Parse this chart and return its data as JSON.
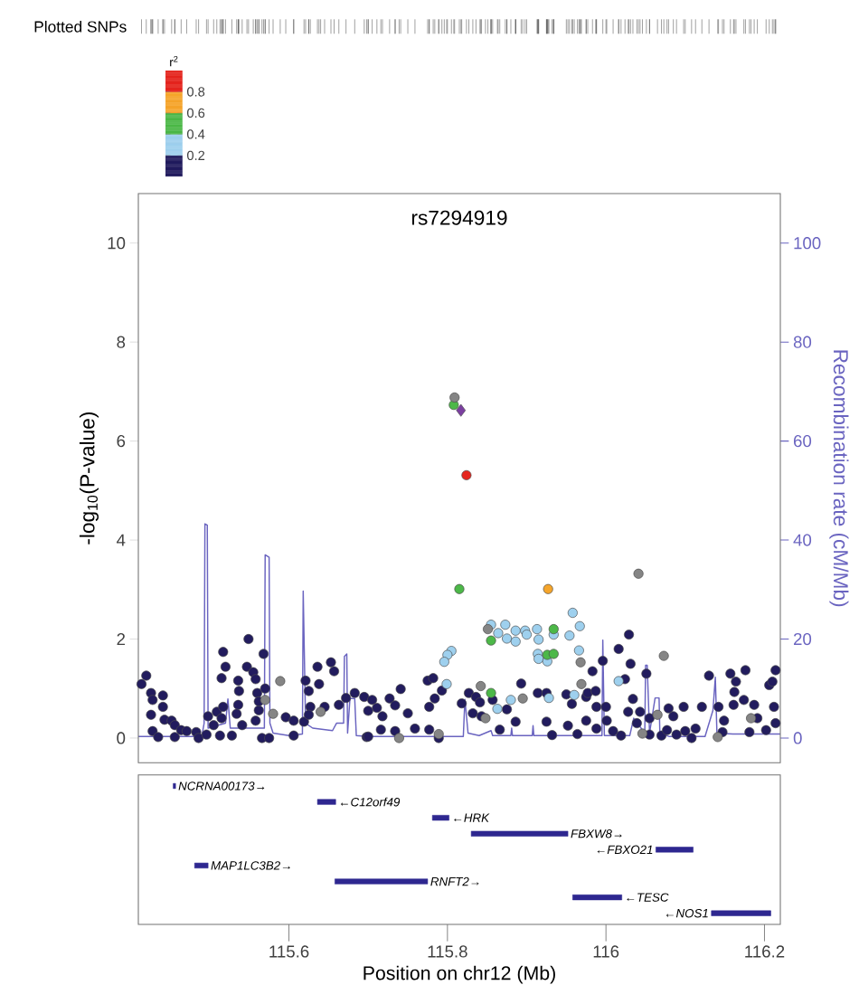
{
  "chart_data": [
    {
      "type": "scatter",
      "title": "rs7294919",
      "ylabel": "-log$_{10}$(P-value)",
      "y2label": "Recombination rate (cM/Mb)",
      "clabel": "r$^{2}$",
      "clim": [
        0,
        1
      ],
      "cticks": [
        0.2,
        0.4,
        0.6,
        0.8
      ],
      "annotations": [
        "Plotted SNPs"
      ],
      "xlim": [
        115.41,
        116.22
      ],
      "ylim": [
        -0.5,
        11
      ],
      "yticks": [
        0,
        2,
        4,
        6,
        8,
        10
      ],
      "y2lim": [
        -5,
        110
      ],
      "y2ticks": [
        0,
        20,
        40,
        60,
        80,
        100
      ],
      "tick_labels": "y",
      "marker": "circle",
      "series": [
        {
          "color": "#221c5e",
          "x": [
            115.42,
            115.414,
            115.426,
            115.428,
            115.441,
            115.426,
            115.441,
            115.443,
            115.452,
            115.428,
            115.435,
            115.456,
            115.464,
            115.471,
            115.456,
            115.483,
            115.486,
            115.498,
            115.496,
            115.505,
            115.509,
            115.515,
            115.517,
            115.513,
            115.517,
            115.52,
            115.515,
            115.536,
            115.537,
            115.536,
            115.534,
            115.541,
            115.528,
            115.549,
            115.547,
            115.555,
            115.558,
            115.56,
            115.562,
            115.558,
            115.566,
            115.575,
            115.568,
            115.57,
            115.562,
            115.596,
            115.606,
            115.606,
            115.619,
            115.621,
            115.625,
            115.636,
            115.638,
            115.653,
            115.657,
            115.627,
            115.645,
            115.625,
            115.663,
            115.672,
            115.683,
            115.698,
            115.695,
            115.705,
            115.7,
            115.711,
            115.727,
            115.741,
            115.734,
            115.75,
            115.718,
            115.7,
            115.716,
            115.734,
            115.759,
            115.775,
            115.782,
            115.777,
            115.784,
            115.793,
            115.777,
            115.789,
            115.818,
            115.827,
            115.836,
            115.841,
            115.832,
            115.843,
            115.857,
            115.875,
            115.886,
            115.893,
            115.866,
            115.914,
            115.925,
            115.925,
            115.932,
            115.95,
            115.957,
            115.952,
            115.964,
            115.975,
            116.029,
            116.016,
            116.031,
            115.996,
            116.051,
            116.024,
            115.983,
            115.977,
            115.987,
            115.988,
            116.0,
            116.034,
            116.028,
            116.043,
            115.975,
            115.988,
            116.001,
            116.009,
            116.019,
            116.039,
            116.055,
            116.055,
            116.07,
            116.079,
            116.085,
            116.098,
            116.077,
            116.089,
            116.1,
            116.108,
            116.113,
            116.121,
            116.13,
            116.142,
            116.149,
            116.147,
            116.157,
            116.164,
            116.176,
            116.162,
            116.161,
            116.174,
            116.187,
            116.191,
            116.181,
            116.202,
            116.206,
            116.21,
            116.214,
            116.212,
            116.214
          ],
          "values": [
            1.26,
            1.09,
            0.91,
            0.77,
            0.86,
            0.47,
            0.63,
            0.37,
            0.35,
            0.14,
            0.02,
            0.26,
            0.16,
            0.14,
            0.02,
            0.12,
            0.0,
            0.44,
            0.07,
            0.26,
            0.53,
            0.4,
            0.63,
            0.05,
            1.74,
            1.44,
            1.21,
            1.16,
            0.95,
            0.67,
            0.49,
            0.26,
            0.05,
            2.0,
            1.44,
            1.33,
            1.19,
            0.91,
            0.56,
            0.35,
            0.0,
            0.0,
            1.7,
            1.0,
            0.74,
            0.42,
            0.35,
            0.05,
            0.33,
            1.16,
            0.95,
            1.44,
            1.09,
            1.53,
            1.35,
            0.63,
            0.63,
            0.47,
            0.67,
            0.81,
            0.91,
            0.02,
            0.83,
            0.77,
            0.55,
            0.61,
            0.8,
            0.99,
            0.66,
            0.5,
            0.44,
            0.03,
            0.17,
            0.14,
            0.19,
            1.16,
            1.21,
            0.63,
            0.8,
            0.96,
            0.17,
            0.0,
            0.7,
            0.91,
            0.83,
            0.72,
            0.5,
            0.44,
            0.77,
            0.58,
            0.33,
            1.1,
            0.17,
            0.91,
            0.91,
            0.33,
            0.06,
            0.88,
            0.69,
            0.25,
            0.08,
            0.83,
            2.09,
            1.8,
            1.5,
            1.56,
            1.3,
            1.19,
            1.35,
            0.91,
            0.95,
            0.63,
            0.63,
            0.79,
            0.53,
            0.53,
            0.35,
            0.19,
            0.35,
            0.14,
            0.05,
            0.3,
            0.4,
            0.07,
            0.05,
            0.6,
            0.44,
            0.63,
            0.16,
            0.07,
            0.14,
            0.0,
            0.19,
            0.63,
            1.26,
            0.63,
            0.35,
            0.12,
            1.3,
            1.14,
            1.37,
            0.93,
            0.67,
            0.77,
            0.67,
            0.4,
            0.12,
            0.16,
            1.07,
            1.14,
            1.37,
            0.63,
            0.3
          ],
          "cvalues": [
            0.1,
            0.1,
            0.1,
            0.1,
            0.1,
            0.1,
            0.1,
            0.1,
            0.1,
            0.1,
            0.1,
            0.1,
            0.1,
            0.1,
            0.1,
            0.1,
            0.1,
            0.1,
            0.1,
            0.1,
            0.1,
            0.1,
            0.1,
            0.1,
            0.1,
            0.1,
            0.1,
            0.1,
            0.1,
            0.1,
            0.1,
            0.1,
            0.1,
            0.1,
            0.1,
            0.1,
            0.1,
            0.1,
            0.1,
            0.1,
            0.1,
            0.1,
            0.1,
            0.1,
            0.1,
            0.1,
            0.1,
            0.1,
            0.1,
            0.1,
            0.1,
            0.1,
            0.1,
            0.1,
            0.1,
            0.1,
            0.1,
            0.1,
            0.1,
            0.1,
            0.1,
            0.1,
            0.1,
            0.1,
            0.1,
            0.1,
            0.1,
            0.1,
            0.1,
            0.1,
            0.1,
            0.1,
            0.1,
            0.1,
            0.1,
            0.1,
            0.1,
            0.1,
            0.1,
            0.1,
            0.1,
            0.1,
            0.1,
            0.1,
            0.1,
            0.1,
            0.1,
            0.1,
            0.1,
            0.1,
            0.1,
            0.1,
            0.1,
            0.1,
            0.1,
            0.1,
            0.1,
            0.1,
            0.1,
            0.1,
            0.1,
            0.1,
            0.1,
            0.1,
            0.1,
            0.1,
            0.1,
            0.1,
            0.1,
            0.1,
            0.1,
            0.1,
            0.1,
            0.1,
            0.1,
            0.1,
            0.1,
            0.1,
            0.1,
            0.1,
            0.1,
            0.1,
            0.1,
            0.1,
            0.1,
            0.1,
            0.1,
            0.1,
            0.1,
            0.1,
            0.1,
            0.1,
            0.1,
            0.1,
            0.1,
            0.1,
            0.1,
            0.1,
            0.1,
            0.1,
            0.1,
            0.1,
            0.1,
            0.1,
            0.1,
            0.1,
            0.1,
            0.1,
            0.1,
            0.1,
            0.1,
            0.1,
            0.1
          ]
        },
        {
          "color": "#9ed0ee",
          "x": [
            115.958,
            115.855,
            115.873,
            115.886,
            115.898,
            115.913,
            115.864,
            115.875,
            115.886,
            115.9,
            115.915,
            115.934,
            115.954,
            115.967,
            115.805,
            115.8,
            115.796,
            115.799,
            115.914,
            115.915,
            115.926,
            115.966,
            115.88,
            115.863,
            115.928,
            115.96,
            116.016
          ],
          "values": [
            2.53,
            2.29,
            2.29,
            2.17,
            2.17,
            2.2,
            2.12,
            2.01,
            1.95,
            2.09,
            1.99,
            2.09,
            2.07,
            2.26,
            1.76,
            1.68,
            1.54,
            1.09,
            1.7,
            1.6,
            1.55,
            1.77,
            0.77,
            0.59,
            0.81,
            0.87,
            1.15
          ],
          "cvalues": [
            0.3,
            0.3,
            0.3,
            0.3,
            0.3,
            0.3,
            0.3,
            0.3,
            0.3,
            0.3,
            0.3,
            0.3,
            0.3,
            0.3,
            0.3,
            0.3,
            0.3,
            0.3,
            0.3,
            0.3,
            0.3,
            0.3,
            0.3,
            0.3,
            0.3,
            0.3,
            0.3
          ]
        },
        {
          "color": "#4cb848",
          "x": [
            115.808,
            115.815,
            115.934,
            115.855,
            115.926,
            115.934,
            115.855
          ],
          "values": [
            6.73,
            3.01,
            2.2,
            1.97,
            1.68,
            1.7,
            0.91
          ],
          "cvalues": [
            0.5,
            0.5,
            0.5,
            0.5,
            0.5,
            0.5,
            0.5
          ]
        },
        {
          "color": "#f5a52b",
          "x": [
            115.927
          ],
          "values": [
            3.01
          ],
          "cvalues": [
            0.7
          ]
        },
        {
          "color": "#e5261f",
          "x": [
            115.824
          ],
          "values": [
            5.31
          ],
          "cvalues": [
            0.9
          ]
        },
        {
          "color": "#858585",
          "x": [
            115.589,
            115.58,
            115.64,
            115.57,
            115.809,
            115.851,
            115.968,
            115.969,
            115.842,
            115.895,
            115.739,
            115.789,
            115.848,
            116.041,
            116.073,
            116.065,
            116.046,
            116.141,
            116.183
          ],
          "values": [
            1.15,
            0.49,
            0.53,
            0.77,
            6.88,
            2.2,
            1.53,
            1.09,
            1.05,
            0.8,
            0.0,
            0.08,
            0.4,
            3.32,
            1.66,
            0.47,
            0.09,
            0.02,
            0.4
          ]
        },
        {
          "color": "#7b3fa0",
          "marker": "diamond",
          "x": [
            115.817
          ],
          "values": [
            6.62
          ]
        },
        {
          "type": "line",
          "axis": "y2",
          "color": "#6a64c0",
          "marker": "none",
          "x": [
            115.41,
            115.49,
            115.493,
            115.494,
            115.497,
            115.498,
            115.52,
            115.523,
            115.526,
            115.55,
            115.569,
            115.57,
            115.575,
            115.576,
            115.58,
            115.6,
            115.617,
            115.618,
            115.621,
            115.63,
            115.655,
            115.66,
            115.669,
            115.67,
            115.673,
            115.674,
            115.677,
            115.683,
            115.685,
            115.7,
            115.82,
            115.822,
            115.826,
            115.84,
            115.855,
            115.857,
            115.88,
            115.881,
            115.882,
            115.907,
            115.908,
            115.909,
            115.995,
            115.996,
            115.998,
            116.03,
            116.035,
            116.049,
            116.05,
            116.052,
            116.055,
            116.062,
            116.067,
            116.068,
            116.08,
            116.125,
            116.135,
            116.138,
            116.14,
            116.16,
            116.22
          ],
          "values": [
            0.3,
            0.3,
            3,
            43.3,
            43,
            2,
            3,
            7.9,
            2,
            2,
            2,
            37,
            36.5,
            3,
            1,
            0.5,
            0.8,
            29.7,
            3,
            2,
            1.5,
            3,
            3,
            16.5,
            17,
            1,
            8,
            8,
            0.5,
            0.3,
            0.3,
            7.8,
            1,
            0.5,
            1.5,
            0.5,
            0.5,
            2,
            0.5,
            0.5,
            2.5,
            0.5,
            0.5,
            19.8,
            0.5,
            0.5,
            4,
            1,
            14.7,
            14.7,
            1,
            8.1,
            8.1,
            1,
            0.3,
            0.3,
            5.6,
            12.3,
            1,
            0.8,
            0.8
          ]
        }
      ]
    },
    {
      "type": "bar",
      "orientation": "horizontal",
      "xlabel": "Position on chr12 (Mb)",
      "color": "#2e2790",
      "xlim": [
        115.41,
        116.22
      ],
      "xticks": [
        115.6,
        115.8,
        116,
        116.2
      ],
      "categories": [
        "NCRNA00173→",
        "←C12orf49",
        "←HRK",
        "FBXW8→",
        "←FBXO21",
        "MAP1LC3B2→",
        "RNFT2→",
        "←TESC",
        "←NOS1"
      ],
      "base": [
        115.454,
        115.636,
        115.781,
        115.83,
        116.063,
        115.481,
        115.658,
        115.958,
        116.133
      ],
      "values": [
        0.003,
        0.023,
        0.021,
        0.122,
        0.047,
        0.017,
        0.117,
        0.062,
        0.075
      ]
    }
  ]
}
